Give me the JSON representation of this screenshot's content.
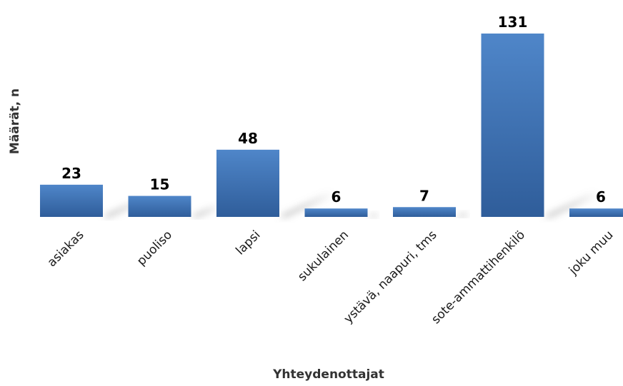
{
  "chart_data": {
    "type": "bar",
    "title": "",
    "xlabel": "Yhteydenottajat",
    "ylabel": "Määrät, n",
    "categories": [
      "asiakas",
      "puoliso",
      "lapsi",
      "sukulainen",
      "ystävä, naapuri, tms",
      "sote-ammattihenkilö",
      "joku muu"
    ],
    "values": [
      23,
      15,
      48,
      6,
      7,
      131,
      6
    ],
    "ylim": [
      0,
      131
    ],
    "grid": false,
    "legend": "none",
    "colors": {
      "bar_top": "#4f86c9",
      "bar_bottom": "#2f5d9a",
      "shadow": "#9a9a9a"
    }
  }
}
